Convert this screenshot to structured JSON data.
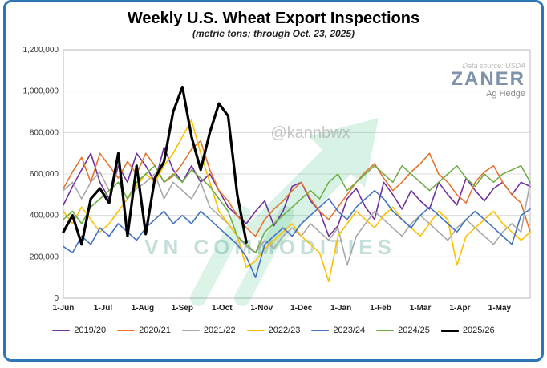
{
  "header": {
    "title": "Weekly U.S. Wheat Export Inspections",
    "subtitle": "(metric tons; through Oct. 23, 2025)"
  },
  "branding": {
    "data_source": "Data source: USDA",
    "logo": "ZANER",
    "logo_sub": "Ag Hedge"
  },
  "watermarks": {
    "handle": "@kannbwx",
    "commodities": "VN COMMODITIES"
  },
  "chart_data": {
    "type": "line",
    "title": "Weekly U.S. Wheat Export Inspections",
    "subtitle": "(metric tons; through Oct. 23, 2025)",
    "xlabel": "",
    "ylabel": "",
    "ylim": [
      0,
      1200000
    ],
    "y_ticks": [
      0,
      200000,
      400000,
      600000,
      800000,
      1000000,
      1200000
    ],
    "x_weeks": 52,
    "x_tick_labels": [
      "1-Jun",
      "1-Jul",
      "1-Aug",
      "1-Sep",
      "1-Oct",
      "1-Nov",
      "1-Dec",
      "1-Jan",
      "1-Feb",
      "1-Mar",
      "1-Apr",
      "1-May"
    ],
    "grid": "horizontal",
    "legend_position": "bottom",
    "series": [
      {
        "name": "2019/20",
        "color": "#7030A0",
        "width": 1.6,
        "values": [
          450000,
          540000,
          620000,
          700000,
          560000,
          480000,
          640000,
          560000,
          700000,
          640000,
          560000,
          730000,
          620000,
          560000,
          640000,
          560000,
          600000,
          520000,
          440000,
          400000,
          360000,
          420000,
          470000,
          350000,
          420000,
          540000,
          560000,
          470000,
          420000,
          300000,
          350000,
          480000,
          530000,
          440000,
          380000,
          560000,
          500000,
          430000,
          520000,
          470000,
          430000,
          560000,
          500000,
          450000,
          580000,
          520000,
          470000,
          530000,
          560000,
          500000,
          560000,
          540000
        ]
      },
      {
        "name": "2020/21",
        "color": "#E8742C",
        "width": 1.6,
        "values": [
          530000,
          610000,
          680000,
          560000,
          700000,
          640000,
          580000,
          660000,
          600000,
          700000,
          640000,
          560000,
          590000,
          650000,
          720000,
          760000,
          620000,
          520000,
          470000,
          400000,
          340000,
          300000,
          380000,
          430000,
          470000,
          520000,
          560000,
          480000,
          420000,
          380000,
          440000,
          500000,
          560000,
          610000,
          650000,
          580000,
          520000,
          560000,
          610000,
          650000,
          700000,
          600000,
          560000,
          500000,
          460000,
          560000,
          610000,
          640000,
          560000,
          500000,
          460000,
          320000
        ]
      },
      {
        "name": "2021/22",
        "color": "#A8A8A8",
        "width": 1.6,
        "values": [
          520000,
          560000,
          480000,
          560000,
          610000,
          520000,
          560000,
          480000,
          530000,
          560000,
          600000,
          480000,
          560000,
          520000,
          480000,
          560000,
          440000,
          400000,
          360000,
          300000,
          250000,
          220000,
          280000,
          240000,
          300000,
          340000,
          300000,
          360000,
          320000,
          280000,
          340000,
          160000,
          300000,
          360000,
          420000,
          380000,
          340000,
          300000,
          360000,
          400000,
          360000,
          320000,
          280000,
          340000,
          380000,
          340000,
          300000,
          260000,
          320000,
          360000,
          320000,
          560000
        ]
      },
      {
        "name": "2022/23",
        "color": "#FFC000",
        "width": 1.6,
        "values": [
          420000,
          360000,
          440000,
          380000,
          320000,
          360000,
          420000,
          480000,
          540000,
          600000,
          560000,
          640000,
          700000,
          780000,
          860000,
          700000,
          560000,
          420000,
          360000,
          300000,
          150000,
          180000,
          240000,
          280000,
          320000,
          360000,
          300000,
          260000,
          220000,
          80000,
          300000,
          360000,
          420000,
          380000,
          340000,
          400000,
          440000,
          380000,
          340000,
          300000,
          360000,
          420000,
          380000,
          160000,
          300000,
          340000,
          380000,
          420000,
          360000,
          320000,
          280000,
          320000
        ]
      },
      {
        "name": "2023/24",
        "color": "#4472C4",
        "width": 1.6,
        "values": [
          250000,
          220000,
          300000,
          260000,
          340000,
          300000,
          360000,
          320000,
          280000,
          340000,
          380000,
          420000,
          360000,
          400000,
          360000,
          420000,
          380000,
          340000,
          300000,
          260000,
          200000,
          100000,
          260000,
          300000,
          340000,
          300000,
          360000,
          400000,
          440000,
          480000,
          420000,
          380000,
          440000,
          480000,
          520000,
          480000,
          420000,
          380000,
          340000,
          400000,
          440000,
          400000,
          360000,
          320000,
          380000,
          420000,
          380000,
          340000,
          300000,
          260000,
          400000,
          430000
        ]
      },
      {
        "name": "2024/25",
        "color": "#70AD47",
        "width": 1.6,
        "values": [
          380000,
          420000,
          360000,
          440000,
          480000,
          520000,
          560000,
          480000,
          560000,
          600000,
          640000,
          560000,
          600000,
          560000,
          620000,
          580000,
          540000,
          480000,
          420000,
          300000,
          260000,
          220000,
          320000,
          360000,
          400000,
          440000,
          480000,
          520000,
          480000,
          560000,
          600000,
          520000,
          560000,
          600000,
          640000,
          600000,
          560000,
          640000,
          600000,
          560000,
          520000,
          560000,
          600000,
          640000,
          580000,
          540000,
          600000,
          560000,
          600000,
          620000,
          640000,
          560000
        ]
      },
      {
        "name": "2025/26",
        "color": "#000000",
        "width": 3.2,
        "values": [
          320000,
          400000,
          260000,
          480000,
          530000,
          460000,
          700000,
          300000,
          640000,
          310000,
          580000,
          660000,
          900000,
          1020000,
          780000,
          620000,
          800000,
          940000,
          880000,
          500000,
          270000
        ]
      }
    ]
  }
}
